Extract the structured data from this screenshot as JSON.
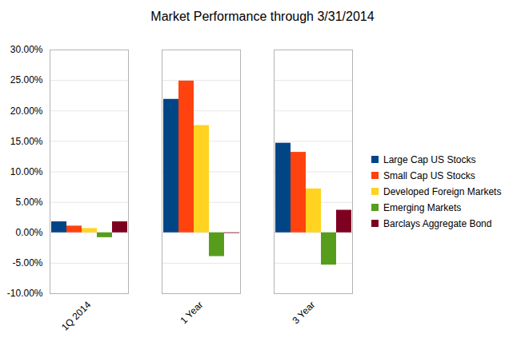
{
  "chart_data": {
    "type": "bar",
    "title": "Market Performance through 3/31/2014",
    "categories": [
      "1Q 2014",
      "1 Year",
      "3 Year"
    ],
    "series": [
      {
        "name": "Large Cap US Stocks",
        "color": "#004586",
        "values": [
          1.8,
          21.9,
          14.7
        ]
      },
      {
        "name": "Small Cap US Stocks",
        "color": "#ff420e",
        "values": [
          1.1,
          24.9,
          13.2
        ]
      },
      {
        "name": "Developed Foreign Markets",
        "color": "#ffd320",
        "values": [
          0.7,
          17.6,
          7.2
        ]
      },
      {
        "name": "Emerging Markets",
        "color": "#579d1c",
        "values": [
          -0.8,
          -3.9,
          -5.3
        ]
      },
      {
        "name": "Barclays Aggregate Bond",
        "color": "#7e0021",
        "values": [
          1.8,
          -0.1,
          3.7
        ]
      }
    ],
    "ylim": [
      -10,
      30
    ],
    "yticks": [
      {
        "value": -10,
        "label": "-10.00%"
      },
      {
        "value": -5,
        "label": "-5.00%"
      },
      {
        "value": 0,
        "label": "0.00%"
      },
      {
        "value": 5,
        "label": "5.00%"
      },
      {
        "value": 10,
        "label": "10.00%"
      },
      {
        "value": 15,
        "label": "15.00%"
      },
      {
        "value": 20,
        "label": "20.00%"
      },
      {
        "value": 25,
        "label": "25.00%"
      },
      {
        "value": 30,
        "label": "30.00%"
      }
    ],
    "grid": true,
    "legend": "right"
  }
}
